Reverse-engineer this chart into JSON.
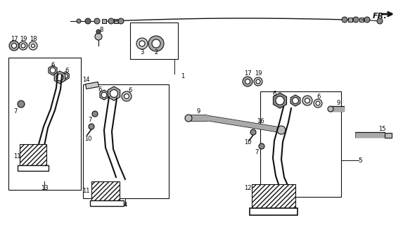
{
  "bg_color": "#ffffff",
  "fig_width": 5.73,
  "fig_height": 3.2,
  "dpi": 100,
  "fr_label": "FR.",
  "label_fontsize": 6.0,
  "label_color": "#000000",
  "line_color": "#111111"
}
